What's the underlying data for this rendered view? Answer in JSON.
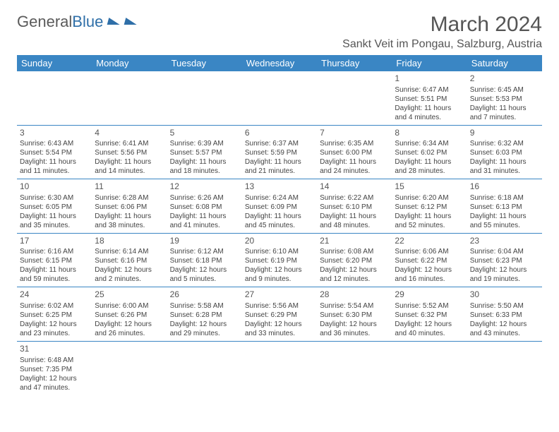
{
  "logo": {
    "text1": "General",
    "text2": "Blue"
  },
  "title": "March 2024",
  "location": "Sankt Veit im Pongau, Salzburg, Austria",
  "colors": {
    "header_bg": "#3a86c4",
    "header_text": "#ffffff",
    "border": "#3a86c4",
    "text": "#444444"
  },
  "typography": {
    "title_fontsize": 30,
    "location_fontsize": 16,
    "header_fontsize": 13,
    "cell_fontsize": 10,
    "daynum_fontsize": 12
  },
  "day_headers": [
    "Sunday",
    "Monday",
    "Tuesday",
    "Wednesday",
    "Thursday",
    "Friday",
    "Saturday"
  ],
  "weeks": [
    [
      null,
      null,
      null,
      null,
      null,
      {
        "n": "1",
        "sr": "6:47 AM",
        "ss": "5:51 PM",
        "dl": "11 hours and 4 minutes."
      },
      {
        "n": "2",
        "sr": "6:45 AM",
        "ss": "5:53 PM",
        "dl": "11 hours and 7 minutes."
      }
    ],
    [
      {
        "n": "3",
        "sr": "6:43 AM",
        "ss": "5:54 PM",
        "dl": "11 hours and 11 minutes."
      },
      {
        "n": "4",
        "sr": "6:41 AM",
        "ss": "5:56 PM",
        "dl": "11 hours and 14 minutes."
      },
      {
        "n": "5",
        "sr": "6:39 AM",
        "ss": "5:57 PM",
        "dl": "11 hours and 18 minutes."
      },
      {
        "n": "6",
        "sr": "6:37 AM",
        "ss": "5:59 PM",
        "dl": "11 hours and 21 minutes."
      },
      {
        "n": "7",
        "sr": "6:35 AM",
        "ss": "6:00 PM",
        "dl": "11 hours and 24 minutes."
      },
      {
        "n": "8",
        "sr": "6:34 AM",
        "ss": "6:02 PM",
        "dl": "11 hours and 28 minutes."
      },
      {
        "n": "9",
        "sr": "6:32 AM",
        "ss": "6:03 PM",
        "dl": "11 hours and 31 minutes."
      }
    ],
    [
      {
        "n": "10",
        "sr": "6:30 AM",
        "ss": "6:05 PM",
        "dl": "11 hours and 35 minutes."
      },
      {
        "n": "11",
        "sr": "6:28 AM",
        "ss": "6:06 PM",
        "dl": "11 hours and 38 minutes."
      },
      {
        "n": "12",
        "sr": "6:26 AM",
        "ss": "6:08 PM",
        "dl": "11 hours and 41 minutes."
      },
      {
        "n": "13",
        "sr": "6:24 AM",
        "ss": "6:09 PM",
        "dl": "11 hours and 45 minutes."
      },
      {
        "n": "14",
        "sr": "6:22 AM",
        "ss": "6:10 PM",
        "dl": "11 hours and 48 minutes."
      },
      {
        "n": "15",
        "sr": "6:20 AM",
        "ss": "6:12 PM",
        "dl": "11 hours and 52 minutes."
      },
      {
        "n": "16",
        "sr": "6:18 AM",
        "ss": "6:13 PM",
        "dl": "11 hours and 55 minutes."
      }
    ],
    [
      {
        "n": "17",
        "sr": "6:16 AM",
        "ss": "6:15 PM",
        "dl": "11 hours and 59 minutes."
      },
      {
        "n": "18",
        "sr": "6:14 AM",
        "ss": "6:16 PM",
        "dl": "12 hours and 2 minutes."
      },
      {
        "n": "19",
        "sr": "6:12 AM",
        "ss": "6:18 PM",
        "dl": "12 hours and 5 minutes."
      },
      {
        "n": "20",
        "sr": "6:10 AM",
        "ss": "6:19 PM",
        "dl": "12 hours and 9 minutes."
      },
      {
        "n": "21",
        "sr": "6:08 AM",
        "ss": "6:20 PM",
        "dl": "12 hours and 12 minutes."
      },
      {
        "n": "22",
        "sr": "6:06 AM",
        "ss": "6:22 PM",
        "dl": "12 hours and 16 minutes."
      },
      {
        "n": "23",
        "sr": "6:04 AM",
        "ss": "6:23 PM",
        "dl": "12 hours and 19 minutes."
      }
    ],
    [
      {
        "n": "24",
        "sr": "6:02 AM",
        "ss": "6:25 PM",
        "dl": "12 hours and 23 minutes."
      },
      {
        "n": "25",
        "sr": "6:00 AM",
        "ss": "6:26 PM",
        "dl": "12 hours and 26 minutes."
      },
      {
        "n": "26",
        "sr": "5:58 AM",
        "ss": "6:28 PM",
        "dl": "12 hours and 29 minutes."
      },
      {
        "n": "27",
        "sr": "5:56 AM",
        "ss": "6:29 PM",
        "dl": "12 hours and 33 minutes."
      },
      {
        "n": "28",
        "sr": "5:54 AM",
        "ss": "6:30 PM",
        "dl": "12 hours and 36 minutes."
      },
      {
        "n": "29",
        "sr": "5:52 AM",
        "ss": "6:32 PM",
        "dl": "12 hours and 40 minutes."
      },
      {
        "n": "30",
        "sr": "5:50 AM",
        "ss": "6:33 PM",
        "dl": "12 hours and 43 minutes."
      }
    ],
    [
      {
        "n": "31",
        "sr": "6:48 AM",
        "ss": "7:35 PM",
        "dl": "12 hours and 47 minutes."
      },
      null,
      null,
      null,
      null,
      null,
      null
    ]
  ],
  "labels": {
    "sunrise": "Sunrise: ",
    "sunset": "Sunset: ",
    "daylight": "Daylight: "
  }
}
